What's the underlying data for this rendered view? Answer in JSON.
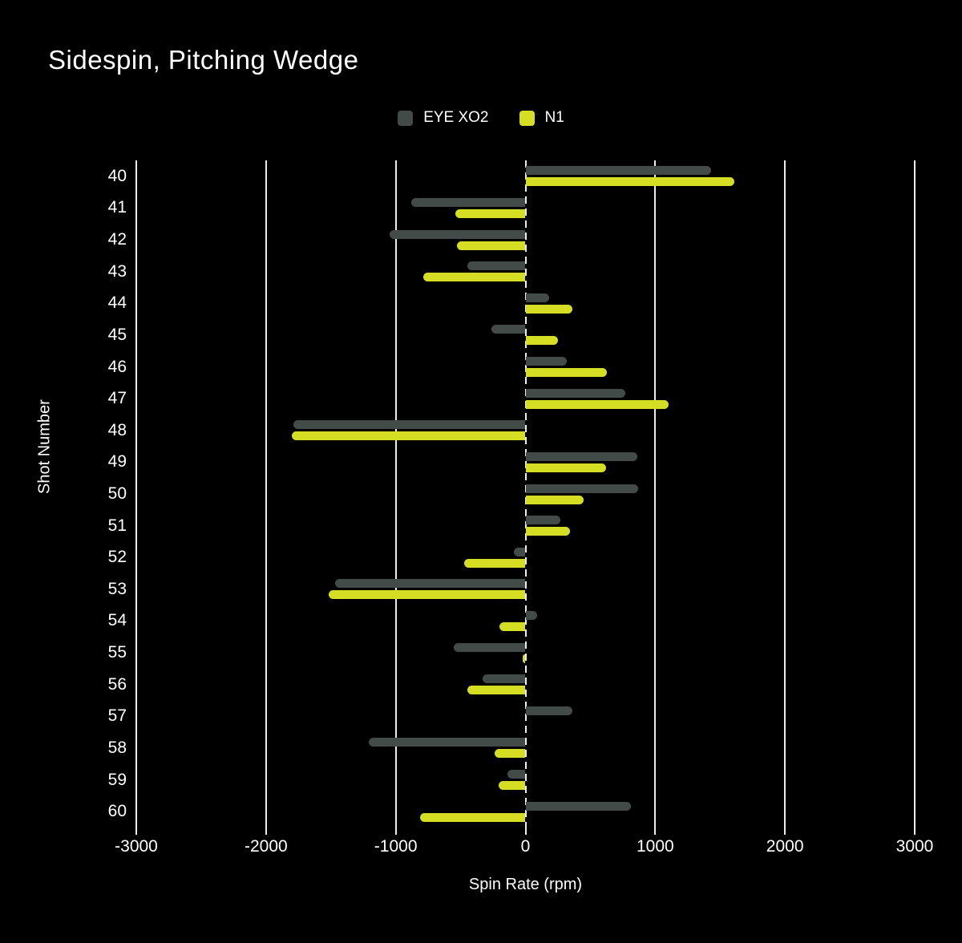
{
  "title": "Sidespin, Pitching Wedge",
  "legend": {
    "items": [
      {
        "label": "EYE XO2",
        "color": "#434B48"
      },
      {
        "label": "N1",
        "color": "#D6DE23"
      }
    ]
  },
  "axes": {
    "xlabel": "Spin Rate (rpm)",
    "ylabel": "Shot Number"
  },
  "chart_data": {
    "type": "bar",
    "orientation": "horizontal",
    "title": "Sidespin, Pitching Wedge",
    "xlabel": "Spin Rate (rpm)",
    "ylabel": "Shot Number",
    "xlim": [
      -3000,
      3000
    ],
    "x_ticks": [
      -3000,
      -2000,
      -1000,
      0,
      1000,
      2000,
      3000
    ],
    "grid": "vertical, white on black, dashed line at zero",
    "legend_position": "top-center",
    "background_color": "#000000",
    "categories": [
      40,
      41,
      42,
      43,
      44,
      45,
      46,
      47,
      48,
      49,
      50,
      51,
      52,
      53,
      54,
      55,
      56,
      57,
      58,
      59,
      60
    ],
    "series": [
      {
        "name": "EYE XO2",
        "color": "#434B48",
        "values": [
          1430,
          -880,
          -1050,
          -450,
          180,
          -260,
          320,
          770,
          -1790,
          860,
          870,
          270,
          -90,
          -1470,
          90,
          -550,
          -330,
          360,
          -1210,
          -140,
          810
        ]
      },
      {
        "name": "N1",
        "color": "#D6DE23",
        "values": [
          1610,
          -540,
          -530,
          -790,
          360,
          250,
          630,
          1100,
          -1800,
          620,
          450,
          340,
          -470,
          -1520,
          -200,
          -20,
          -450,
          0,
          -240,
          -210,
          -810
        ]
      }
    ]
  }
}
